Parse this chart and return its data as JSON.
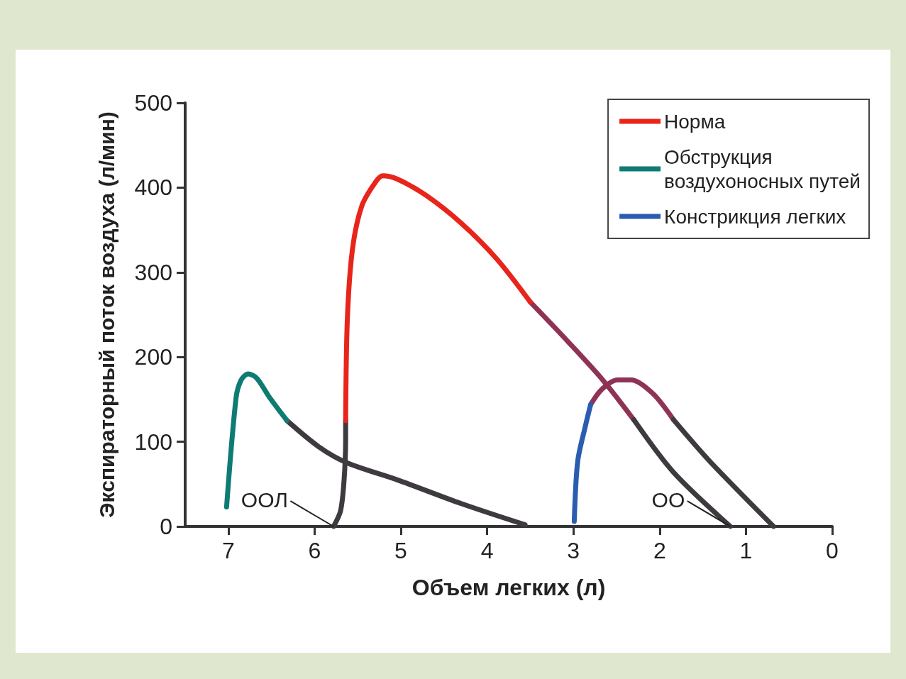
{
  "chart_data": {
    "type": "line",
    "xlabel": "Объем легких (л)",
    "ylabel": "Экспираторный поток воздуха (л/мин)",
    "xlim": [
      7.5,
      0
    ],
    "xticks": [
      7,
      6,
      5,
      4,
      3,
      2,
      1,
      0
    ],
    "ylim": [
      0,
      500
    ],
    "yticks": [
      0,
      100,
      200,
      300,
      400,
      500
    ],
    "grid": false,
    "legend": "top right",
    "marker": "none",
    "series": [
      {
        "name": "Норма",
        "color": "#e8251b",
        "x": [
          5.64,
          5.62,
          5.56,
          5.45,
          5.29,
          5.21,
          5.04,
          4.71,
          4.3,
          3.89,
          3.5
        ],
        "values": [
          125,
          245,
          328,
          379,
          407,
          414,
          410,
          391,
          358,
          316,
          265
        ]
      },
      {
        "color": "#8f3356",
        "x": [
          3.5,
          3.07,
          2.66,
          2.3
        ],
        "values": [
          265,
          219,
          173,
          126
        ]
      },
      {
        "color": "#3f3a40",
        "x": [
          2.3,
          1.84,
          1.18
        ],
        "values": [
          126,
          64,
          0
        ]
      },
      {
        "color": "#3f3a40",
        "x": [
          5.78,
          5.7,
          5.66,
          5.64,
          5.64
        ],
        "values": [
          0,
          18,
          52,
          102,
          125
        ]
      },
      {
        "name": "Обструкция воздухоносных путей",
        "color": "#0e7b74",
        "x": [
          7.02,
          6.91,
          6.85,
          6.77,
          6.67,
          6.52,
          6.32
        ],
        "values": [
          23,
          152,
          173,
          180,
          175,
          152,
          125
        ]
      },
      {
        "color": "#3f3a40",
        "x": [
          6.32,
          5.95,
          5.62,
          5.04,
          4.3,
          3.56
        ],
        "values": [
          125,
          94,
          75,
          55,
          27,
          2
        ]
      },
      {
        "name": "Констрикция легких",
        "color": "#2a5db0",
        "x": [
          2.99,
          2.95,
          2.86,
          2.8
        ],
        "values": [
          6,
          77,
          119,
          144
        ]
      },
      {
        "color": "#8f3356",
        "x": [
          2.8,
          2.67,
          2.49,
          2.33,
          2.08,
          1.84
        ],
        "values": [
          144,
          162,
          173,
          173,
          157,
          126
        ]
      },
      {
        "color": "#3f3a40",
        "x": [
          1.84,
          1.42,
          0.68
        ],
        "values": [
          126,
          77,
          0
        ]
      }
    ],
    "annotations": [
      {
        "text": "ООЛ",
        "x": 5.78,
        "y": 0
      },
      {
        "text": "ОО",
        "x": 1.18,
        "y": 0
      }
    ]
  }
}
